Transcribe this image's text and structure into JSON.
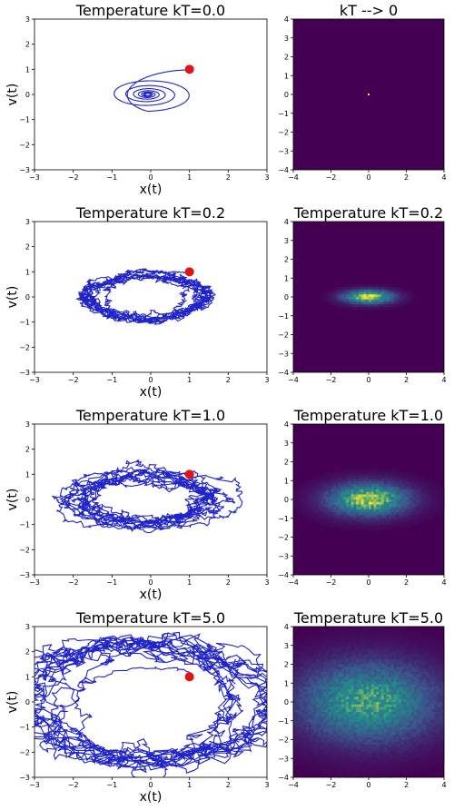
{
  "figure": {
    "kind": "grid of phase-space trajectory plots and density heatmaps",
    "rows": 4,
    "columns": 2
  },
  "colors": {
    "trajectory": "#1f23c8",
    "marker": "#e01414",
    "heatmap_low": "#440154",
    "heatmap_mid": "#21918c",
    "heatmap_high": "#fde725"
  },
  "chart_data": [
    {
      "type": "line",
      "title": "Temperature kT=0.0",
      "xlabel": "x(t)",
      "ylabel": "v(t)",
      "xlim": [
        -3,
        3
      ],
      "ylim": [
        -3,
        3
      ],
      "xticks": [
        "−3",
        "−2",
        "−1",
        "0",
        "1",
        "2",
        "3"
      ],
      "yticks": [
        "−3",
        "−2",
        "−1",
        "0",
        "1",
        "2",
        "3"
      ],
      "kT": 0.0,
      "start_point": [
        1,
        1
      ],
      "trajectory_shape": "inward spiral to origin",
      "x_amplitude": 1.6,
      "y_amplitude": 0.9
    },
    {
      "type": "heatmap",
      "title": "kT --> 0",
      "xlim": [
        -4,
        4
      ],
      "ylim": [
        -4,
        4
      ],
      "xticks": [
        "−4",
        "−2",
        "0",
        "2",
        "4"
      ],
      "yticks": [
        "−4",
        "−3",
        "−2",
        "−1",
        "0",
        "1",
        "2",
        "3",
        "4"
      ],
      "peak": [
        0,
        0
      ],
      "sigma_x": 0.05,
      "sigma_y": 0.05
    },
    {
      "type": "line",
      "title": "Temperature kT=0.2",
      "xlabel": "x(t)",
      "ylabel": "v(t)",
      "xlim": [
        -3,
        3
      ],
      "ylim": [
        -3,
        3
      ],
      "xticks": [
        "−3",
        "−2",
        "−1",
        "0",
        "1",
        "2",
        "3"
      ],
      "yticks": [
        "−3",
        "−2",
        "−1",
        "0",
        "1",
        "2",
        "3"
      ],
      "kT": 0.2,
      "start_point": [
        1,
        1
      ],
      "trajectory_shape": "noisy orbit",
      "x_amplitude": 1.5,
      "y_amplitude": 0.9
    },
    {
      "type": "heatmap",
      "title": "Temperature kT=0.2",
      "xlim": [
        -4,
        4
      ],
      "ylim": [
        -4,
        4
      ],
      "xticks": [
        "−4",
        "−2",
        "0",
        "2",
        "4"
      ],
      "yticks": [
        "−4",
        "−3",
        "−2",
        "−1",
        "0",
        "1",
        "2",
        "3",
        "4"
      ],
      "peak": [
        0,
        0
      ],
      "sigma_x": 0.9,
      "sigma_y": 0.25
    },
    {
      "type": "line",
      "title": "Temperature kT=1.0",
      "xlabel": "x(t)",
      "ylabel": "v(t)",
      "xlim": [
        -3,
        3
      ],
      "ylim": [
        -3,
        3
      ],
      "xticks": [
        "−3",
        "−2",
        "−1",
        "0",
        "1",
        "2",
        "3"
      ],
      "yticks": [
        "−3",
        "−2",
        "−1",
        "0",
        "1",
        "2",
        "3"
      ],
      "kT": 1.0,
      "start_point": [
        1,
        1
      ],
      "trajectory_shape": "noisy orbit",
      "x_amplitude": 2.2,
      "y_amplitude": 1.15
    },
    {
      "type": "heatmap",
      "title": "Temperature kT=1.0",
      "xlim": [
        -4,
        4
      ],
      "ylim": [
        -4,
        4
      ],
      "xticks": [
        "−4",
        "−2",
        "0",
        "2",
        "4"
      ],
      "yticks": [
        "−4",
        "−3",
        "−2",
        "−1",
        "0",
        "1",
        "2",
        "3",
        "4"
      ],
      "peak": [
        0,
        0
      ],
      "sigma_x": 1.5,
      "sigma_y": 0.6
    },
    {
      "type": "line",
      "title": "Temperature kT=5.0",
      "xlabel": "x(t)",
      "ylabel": "v(t)",
      "xlim": [
        -3,
        3
      ],
      "ylim": [
        -3,
        3
      ],
      "xticks": [
        "−3",
        "−2",
        "−1",
        "0",
        "1",
        "2",
        "3"
      ],
      "yticks": [
        "−3",
        "−2",
        "−1",
        "0",
        "1",
        "2",
        "3"
      ],
      "kT": 5.0,
      "start_point": [
        1,
        1
      ],
      "trajectory_shape": "noisy orbit",
      "x_amplitude": 3.2,
      "y_amplitude": 2.3
    },
    {
      "type": "heatmap",
      "title": "Temperature kT=5.0",
      "xlim": [
        -4,
        4
      ],
      "ylim": [
        -4,
        4
      ],
      "xticks": [
        "−4",
        "−2",
        "0",
        "2",
        "4"
      ],
      "yticks": [
        "−4",
        "−3",
        "−2",
        "−1",
        "0",
        "1",
        "2",
        "3",
        "4"
      ],
      "peak": [
        0,
        0
      ],
      "sigma_x": 2.6,
      "sigma_y": 1.5
    }
  ]
}
